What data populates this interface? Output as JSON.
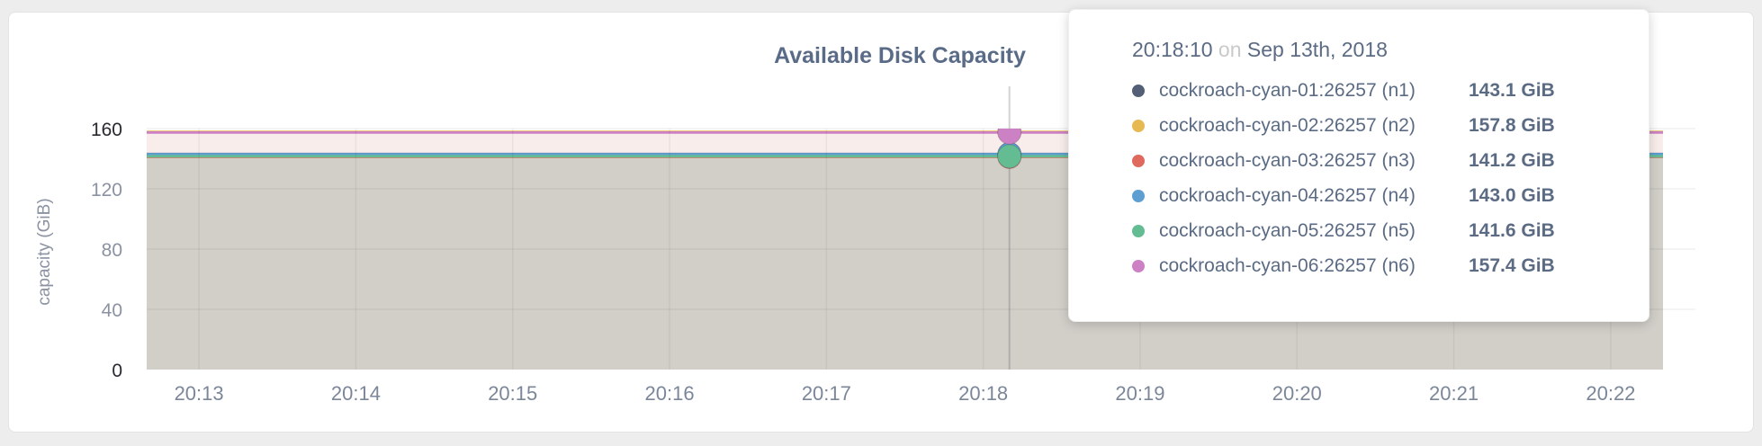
{
  "card": {
    "title": "Available Disk Capacity"
  },
  "tooltip": {
    "time": "20:18:10",
    "separator": "on",
    "date": "Sep 13th, 2018"
  },
  "chart_data": {
    "type": "area",
    "title": "Available Disk Capacity",
    "ylabel": "capacity (GiB)",
    "xlabel": "",
    "ylim": [
      0,
      160
    ],
    "yticks": [
      0,
      40,
      80,
      120,
      160
    ],
    "xticks": [
      "20:13",
      "20:14",
      "20:15",
      "20:16",
      "20:17",
      "20:18",
      "20:19",
      "20:20",
      "20:21",
      "20:22"
    ],
    "x_start": "20:12:40",
    "x_end": "20:22:20",
    "grid": "on",
    "legend_position": "tooltip",
    "hover_time": "20:18:10",
    "series": [
      {
        "name": "cockroach-cyan-01:26257 (n1)",
        "color": "#525f77",
        "value": 143.1,
        "value_label": "143.1 GiB"
      },
      {
        "name": "cockroach-cyan-02:26257 (n2)",
        "color": "#e7b953",
        "value": 157.8,
        "value_label": "157.8 GiB"
      },
      {
        "name": "cockroach-cyan-03:26257 (n3)",
        "color": "#e0695e",
        "value": 141.2,
        "value_label": "141.2 GiB"
      },
      {
        "name": "cockroach-cyan-04:26257 (n4)",
        "color": "#5e9fd2",
        "value": 143.0,
        "value_label": "143.0 GiB"
      },
      {
        "name": "cockroach-cyan-05:26257 (n5)",
        "color": "#64bd92",
        "value": 141.6,
        "value_label": "141.6 GiB"
      },
      {
        "name": "cockroach-cyan-06:26257 (n6)",
        "color": "#cb81c3",
        "value": 157.4,
        "value_label": "157.4 GiB"
      }
    ],
    "overlap_fill_low": "#d2cfc9",
    "overlap_fill_high": "#f8edeb"
  },
  "theme": {
    "page_bg": "#ededed",
    "card_bg": "#ffffff",
    "title_color": "#5a6b87",
    "axis_label_color": "#8b92a1",
    "axis_maxmin_color": "#26292f",
    "x_label_color": "#7b8799",
    "tooltip_text_color": "#5b6b84",
    "tooltip_muted_color": "#c9c9c9"
  }
}
